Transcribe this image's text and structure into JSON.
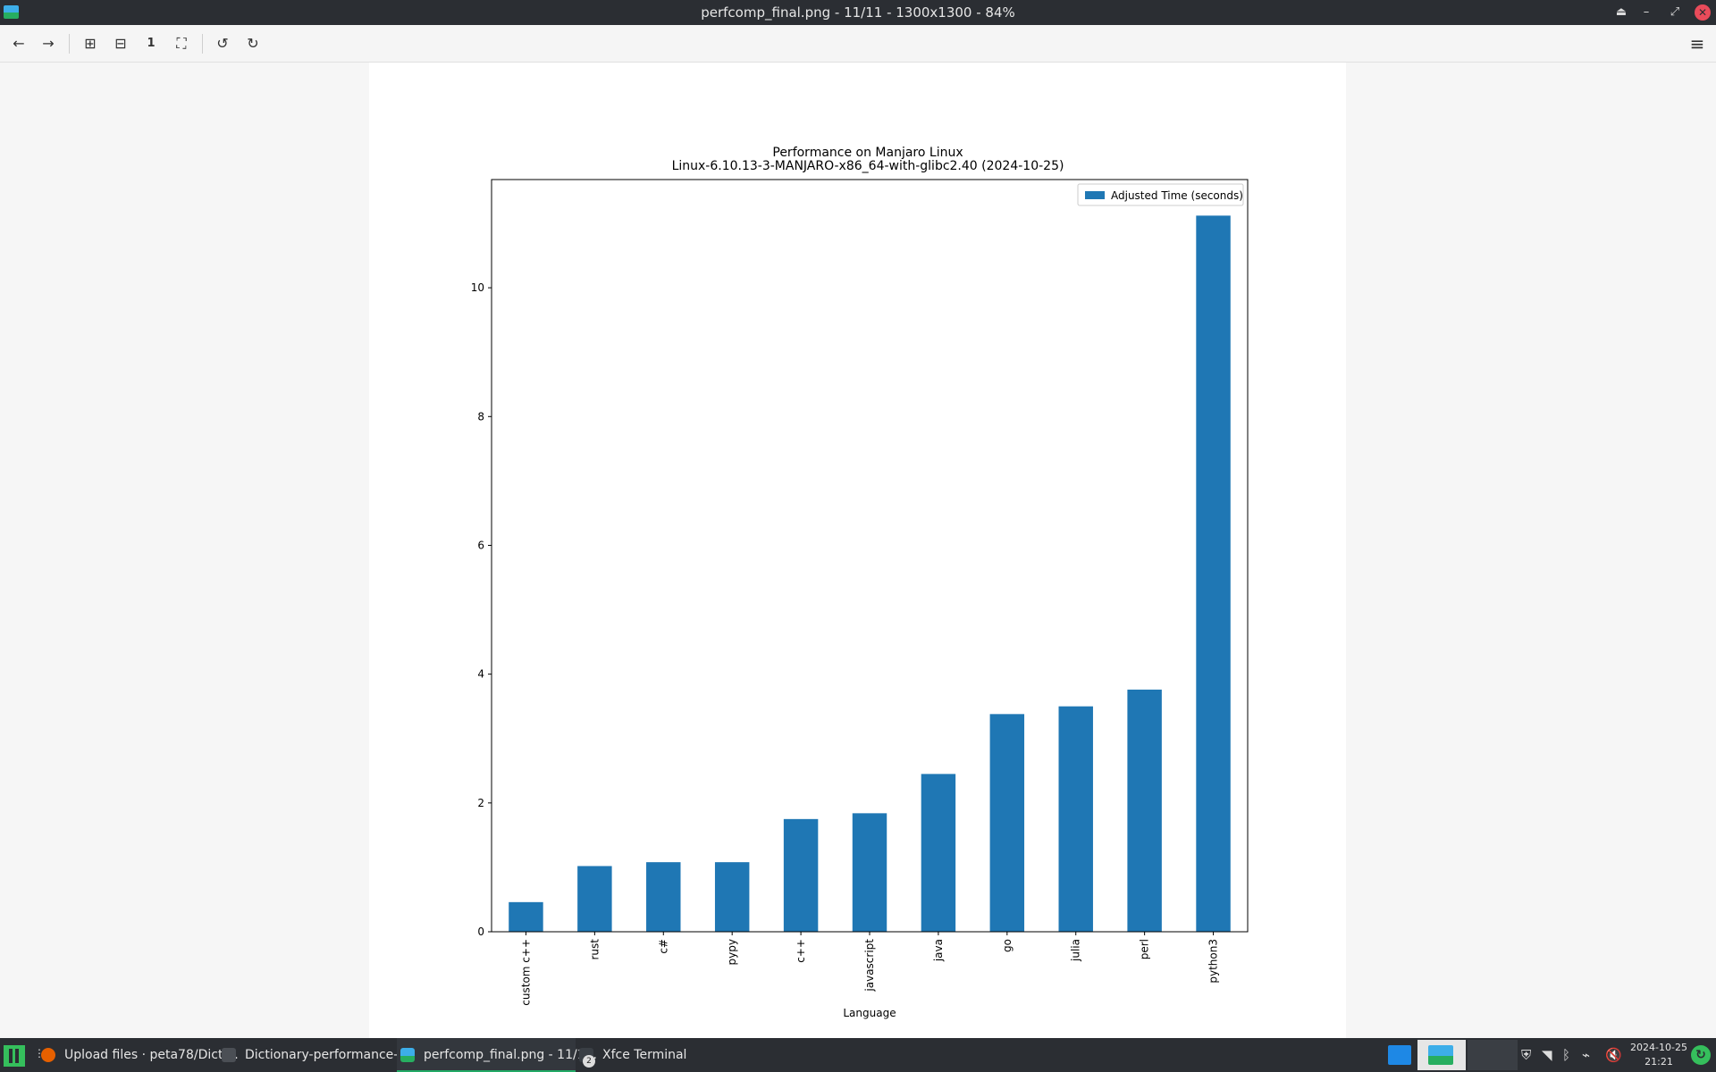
{
  "window": {
    "title": "perfcomp_final.png - 11/11 - 1300x1300 - 84%"
  },
  "toolbar": {
    "back_label": "←",
    "forward_label": "→",
    "zoom_in_label": "⊞",
    "zoom_out_label": "⊟",
    "zoom_1_label": "1",
    "fullscreen_label": "⛶",
    "rotate_left_label": "↺",
    "rotate_right_label": "↻",
    "menu_label": "≡"
  },
  "taskbar": {
    "tasks": [
      {
        "label": "Upload files · peta78/Dicti..."
      },
      {
        "label": "Dictionary-performance-o..."
      },
      {
        "label": "perfcomp_final.png - 11/1..."
      },
      {
        "label": "Xfce Terminal"
      }
    ],
    "terminal_count": "2",
    "clock": {
      "date": "2024-10-25",
      "time": "21:21"
    }
  },
  "chart_data": {
    "type": "bar",
    "title_line1": "Performance on Manjaro Linux",
    "title_line2": "Linux-6.10.13-3-MANJARO-x86_64-with-glibc2.40 (2024-10-25)",
    "xlabel": "Language",
    "ylabel": "",
    "categories": [
      "custom c++",
      "rust",
      "c#",
      "pypy",
      "c++",
      "javascript",
      "java",
      "go",
      "julia",
      "perl",
      "python3"
    ],
    "series": [
      {
        "name": "Adjusted Time (seconds)",
        "values": [
          0.46,
          1.02,
          1.08,
          1.08,
          1.75,
          1.84,
          2.45,
          3.38,
          3.5,
          3.76,
          11.12
        ],
        "color": "#1f77b4"
      }
    ],
    "yticks": [
      "0",
      "2",
      "4",
      "6",
      "8",
      "10"
    ],
    "ylim": [
      0,
      11.68
    ],
    "legend": "top-right",
    "grid": false
  }
}
